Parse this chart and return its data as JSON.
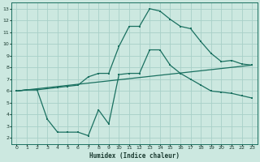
{
  "xlabel": "Humidex (Indice chaleur)",
  "background_color": "#cce8e0",
  "grid_color": "#a8d0c8",
  "line_color": "#1a7060",
  "xlim": [
    -0.5,
    23.5
  ],
  "ylim": [
    1.5,
    13.5
  ],
  "xticks": [
    0,
    1,
    2,
    3,
    4,
    5,
    6,
    7,
    8,
    9,
    10,
    11,
    12,
    13,
    14,
    15,
    16,
    17,
    18,
    19,
    20,
    21,
    22,
    23
  ],
  "yticks": [
    2,
    3,
    4,
    5,
    6,
    7,
    8,
    9,
    10,
    11,
    12,
    13
  ],
  "line1_x": [
    0,
    1,
    2,
    3,
    4,
    5,
    6,
    7,
    8,
    9,
    10,
    11,
    12,
    13,
    14,
    15,
    16,
    17,
    18,
    19,
    20,
    21,
    22,
    23
  ],
  "line1_y": [
    6.0,
    6.1,
    6.1,
    3.6,
    2.5,
    2.5,
    2.5,
    2.2,
    4.4,
    3.2,
    7.4,
    7.5,
    7.5,
    9.5,
    9.5,
    8.2,
    7.5,
    7.0,
    6.5,
    6.0,
    5.9,
    5.8,
    5.6,
    5.4
  ],
  "line2_x": [
    0,
    1,
    2,
    3,
    4,
    5,
    6,
    7,
    8,
    9,
    10,
    11,
    12,
    13,
    14,
    15,
    16,
    17,
    18,
    19,
    20,
    21,
    22,
    23
  ],
  "line2_y": [
    6.0,
    6.1,
    6.1,
    6.2,
    6.3,
    6.4,
    6.5,
    7.2,
    7.5,
    7.5,
    9.8,
    11.5,
    11.5,
    13.0,
    12.8,
    12.1,
    11.5,
    11.3,
    10.2,
    9.2,
    8.5,
    8.6,
    8.3,
    8.2
  ],
  "line3_x": [
    0,
    23
  ],
  "line3_y": [
    6.0,
    8.2
  ]
}
